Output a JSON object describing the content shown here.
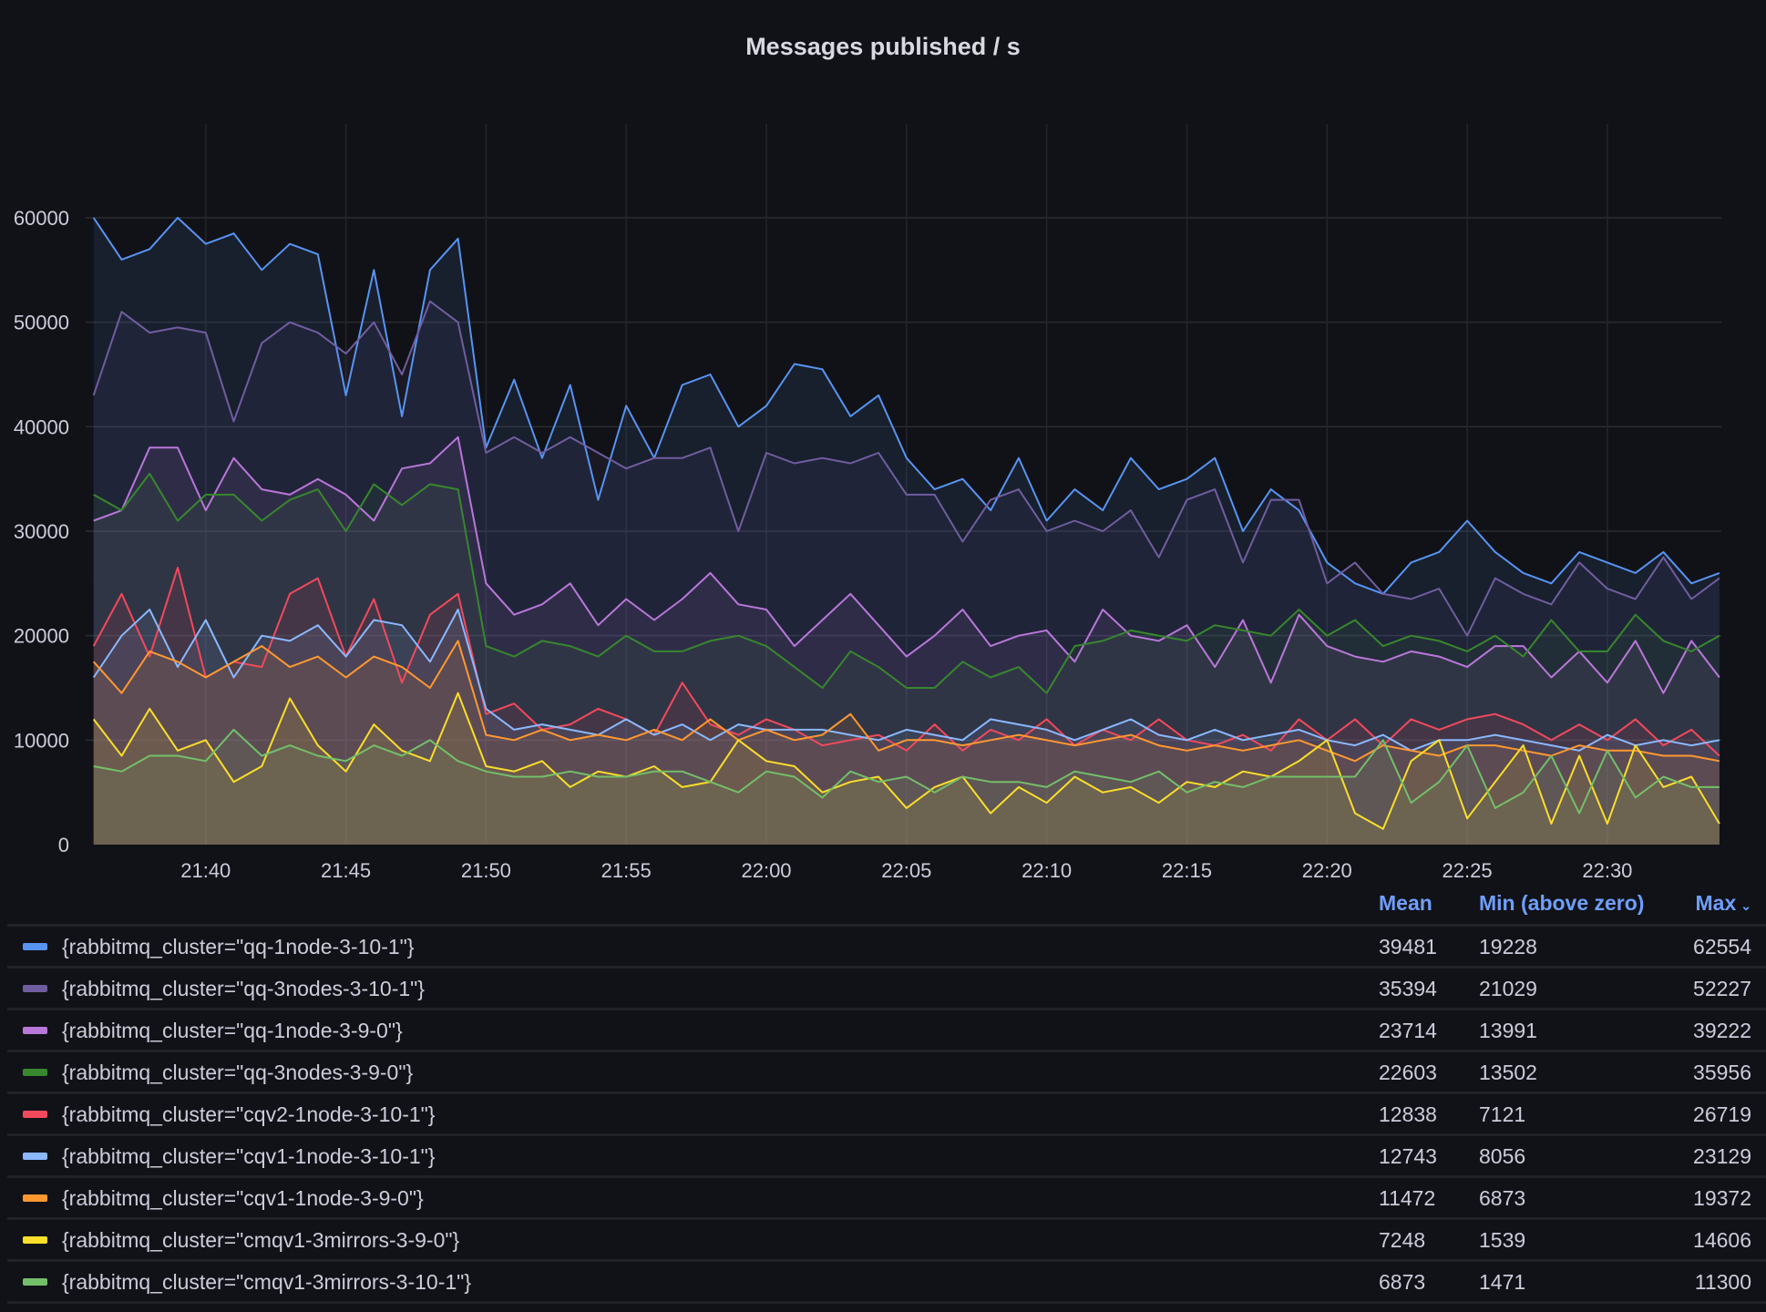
{
  "chart_data": {
    "type": "area",
    "title": "Messages published / s",
    "xlabel": "",
    "ylabel": "",
    "ylim": [
      0,
      67500
    ],
    "yticks": [
      0,
      10000,
      20000,
      30000,
      40000,
      50000,
      60000
    ],
    "xlim": [
      "21:35:43",
      "22:34:04"
    ],
    "xticks": [
      "21:40",
      "21:45",
      "21:50",
      "21:55",
      "22:00",
      "22:05",
      "22:10",
      "22:15",
      "22:20",
      "22:25",
      "22:30"
    ],
    "grid": true,
    "legend_placement": "bottom",
    "x": [
      "21:36",
      "21:37",
      "21:38",
      "21:39",
      "21:40",
      "21:41",
      "21:42",
      "21:43",
      "21:44",
      "21:45",
      "21:46",
      "21:47",
      "21:48",
      "21:49",
      "21:50",
      "21:51",
      "21:52",
      "21:53",
      "21:54",
      "21:55",
      "21:56",
      "21:57",
      "21:58",
      "21:59",
      "22:00",
      "22:01",
      "22:02",
      "22:03",
      "22:04",
      "22:05",
      "22:06",
      "22:07",
      "22:08",
      "22:09",
      "22:10",
      "22:11",
      "22:12",
      "22:13",
      "22:14",
      "22:15",
      "22:16",
      "22:17",
      "22:18",
      "22:19",
      "22:20",
      "22:21",
      "22:22",
      "22:23",
      "22:24",
      "22:25",
      "22:26",
      "22:27",
      "22:28",
      "22:29",
      "22:30",
      "22:31",
      "22:32",
      "22:33",
      "22:34"
    ],
    "legend_columns": [
      "Mean",
      "Min (above zero)",
      "Max"
    ],
    "sort_indicator": "chevron-down-icon",
    "series": [
      {
        "name": "{rabbitmq_cluster=\"qq-1node-3-10-1\"}",
        "color": "#5794f2",
        "mean": "39481",
        "min": "19228",
        "max": "62554",
        "values": [
          60000,
          56000,
          57000,
          60000,
          57500,
          58500,
          55000,
          57500,
          56500,
          43000,
          55000,
          41000,
          55000,
          58000,
          38000,
          44500,
          37000,
          44000,
          33000,
          42000,
          37000,
          44000,
          45000,
          40000,
          42000,
          46000,
          45500,
          41000,
          43000,
          37000,
          34000,
          35000,
          32000,
          37000,
          31000,
          34000,
          32000,
          37000,
          34000,
          35000,
          37000,
          30000,
          34000,
          32000,
          27000,
          25000,
          24000,
          27000,
          28000,
          31000,
          28000,
          26000,
          25000,
          28000,
          27000,
          26000,
          28000,
          25000,
          26000
        ]
      },
      {
        "name": "{rabbitmq_cluster=\"qq-3nodes-3-10-1\"}",
        "color": "#705da0",
        "mean": "35394",
        "min": "21029",
        "max": "52227",
        "values": [
          43000,
          51000,
          49000,
          49500,
          49000,
          40500,
          48000,
          50000,
          49000,
          47000,
          50000,
          45000,
          52000,
          50000,
          37500,
          39000,
          37500,
          39000,
          37500,
          36000,
          37000,
          37000,
          38000,
          30000,
          37500,
          36500,
          37000,
          36500,
          37500,
          33500,
          33500,
          29000,
          33000,
          34000,
          30000,
          31000,
          30000,
          32000,
          27500,
          33000,
          34000,
          27000,
          33000,
          33000,
          25000,
          27000,
          24000,
          23500,
          24500,
          20000,
          25500,
          24000,
          23000,
          27000,
          24500,
          23500,
          27500,
          23500,
          25500
        ]
      },
      {
        "name": "{rabbitmq_cluster=\"qq-1node-3-9-0\"}",
        "color": "#b877d9",
        "mean": "23714",
        "min": "13991",
        "max": "39222",
        "values": [
          31000,
          32000,
          38000,
          38000,
          32000,
          37000,
          34000,
          33500,
          35000,
          33500,
          31000,
          36000,
          36500,
          39000,
          25000,
          22000,
          23000,
          25000,
          21000,
          23500,
          21500,
          23500,
          26000,
          23000,
          22500,
          19000,
          21500,
          24000,
          21000,
          18000,
          20000,
          22500,
          19000,
          20000,
          20500,
          17500,
          22500,
          20000,
          19500,
          21000,
          17000,
          21500,
          15500,
          22000,
          19000,
          18000,
          17500,
          18500,
          18000,
          17000,
          19000,
          19000,
          16000,
          18500,
          15500,
          19500,
          14500,
          19500,
          16000
        ]
      },
      {
        "name": "{rabbitmq_cluster=\"qq-3nodes-3-9-0\"}",
        "color": "#37872d",
        "mean": "22603",
        "min": "13502",
        "max": "35956",
        "values": [
          33500,
          32000,
          35500,
          31000,
          33500,
          33500,
          31000,
          33000,
          34000,
          30000,
          34500,
          32500,
          34500,
          34000,
          19000,
          18000,
          19500,
          19000,
          18000,
          20000,
          18500,
          18500,
          19500,
          20000,
          19000,
          17000,
          15000,
          18500,
          17000,
          15000,
          15000,
          17500,
          16000,
          17000,
          14500,
          19000,
          19500,
          20500,
          20000,
          19500,
          21000,
          20500,
          20000,
          22500,
          20000,
          21500,
          19000,
          20000,
          19500,
          18500,
          20000,
          18000,
          21500,
          18500,
          18500,
          22000,
          19500,
          18500,
          20000
        ]
      },
      {
        "name": "{rabbitmq_cluster=\"cqv2-1node-3-10-1\"}",
        "color": "#f2495c",
        "mean": "12838",
        "min": "7121",
        "max": "26719",
        "values": [
          19000,
          24000,
          18000,
          26500,
          16000,
          17500,
          17000,
          24000,
          25500,
          18000,
          23500,
          15500,
          22000,
          24000,
          12500,
          13500,
          11000,
          11500,
          13000,
          12000,
          10500,
          15500,
          11500,
          10500,
          12000,
          11000,
          9500,
          10000,
          10500,
          9000,
          11500,
          9000,
          11000,
          10000,
          12000,
          9500,
          11000,
          10000,
          12000,
          10000,
          9500,
          10500,
          9000,
          12000,
          10000,
          12000,
          9500,
          12000,
          11000,
          12000,
          12500,
          11500,
          10000,
          11500,
          10000,
          12000,
          9500,
          11000,
          8500
        ]
      },
      {
        "name": "{rabbitmq_cluster=\"cqv1-1node-3-10-1\"}",
        "color": "#8ab8ff",
        "mean": "12743",
        "min": "8056",
        "max": "23129",
        "values": [
          16000,
          20000,
          22500,
          17000,
          21500,
          16000,
          20000,
          19500,
          21000,
          18000,
          21500,
          21000,
          17500,
          22500,
          13000,
          11000,
          11500,
          11000,
          10500,
          12000,
          10500,
          11500,
          10000,
          11500,
          11000,
          11000,
          11000,
          10500,
          10000,
          11000,
          10500,
          10000,
          12000,
          11500,
          11000,
          10000,
          11000,
          12000,
          10500,
          10000,
          11000,
          10000,
          10500,
          11000,
          10000,
          9500,
          10500,
          9000,
          10000,
          10000,
          10500,
          10000,
          9500,
          9000,
          10500,
          9500,
          10000,
          9500,
          10000
        ]
      },
      {
        "name": "{rabbitmq_cluster=\"cqv1-1node-3-9-0\"}",
        "color": "#ff9830",
        "mean": "11472",
        "min": "6873",
        "max": "19372",
        "values": [
          17500,
          14500,
          18500,
          17500,
          16000,
          17500,
          19000,
          17000,
          18000,
          16000,
          18000,
          17000,
          15000,
          19500,
          10500,
          10000,
          11000,
          10000,
          10500,
          10000,
          11000,
          10000,
          12000,
          10000,
          11000,
          10000,
          10500,
          12500,
          9000,
          10000,
          10000,
          9500,
          10000,
          10500,
          10000,
          9500,
          10000,
          10500,
          9500,
          9000,
          9500,
          9000,
          9500,
          10000,
          9000,
          8000,
          9500,
          9000,
          8500,
          9500,
          9500,
          9000,
          8500,
          9500,
          9000,
          9000,
          8500,
          8500,
          8000
        ]
      },
      {
        "name": "{rabbitmq_cluster=\"cmqv1-3mirrors-3-9-0\"}",
        "color": "#fade2a",
        "mean": "7248",
        "min": "1539",
        "max": "14606",
        "values": [
          12000,
          8500,
          13000,
          9000,
          10000,
          6000,
          7500,
          14000,
          9500,
          7000,
          11500,
          9000,
          8000,
          14500,
          7500,
          7000,
          8000,
          5500,
          7000,
          6500,
          7500,
          5500,
          6000,
          10000,
          8000,
          7500,
          5000,
          6000,
          6500,
          3500,
          5500,
          6500,
          3000,
          5500,
          4000,
          6500,
          5000,
          5500,
          4000,
          6000,
          5500,
          7000,
          6500,
          8000,
          10000,
          3000,
          1500,
          8000,
          10000,
          2500,
          6000,
          9500,
          2000,
          8500,
          2000,
          9500,
          5500,
          6500,
          2000
        ]
      },
      {
        "name": "{rabbitmq_cluster=\"cmqv1-3mirrors-3-10-1\"}",
        "color": "#73bf69",
        "mean": "6873",
        "min": "1471",
        "max": "11300",
        "values": [
          7500,
          7000,
          8500,
          8500,
          8000,
          11000,
          8500,
          9500,
          8500,
          8000,
          9500,
          8500,
          10000,
          8000,
          7000,
          6500,
          6500,
          7000,
          6500,
          6500,
          7000,
          7000,
          6000,
          5000,
          7000,
          6500,
          4500,
          7000,
          6000,
          6500,
          5000,
          6500,
          6000,
          6000,
          5500,
          7000,
          6500,
          6000,
          7000,
          5000,
          6000,
          5500,
          6500,
          6500,
          6500,
          6500,
          10000,
          4000,
          6000,
          9500,
          3500,
          5000,
          8500,
          3000,
          9000,
          4500,
          6500,
          5500,
          5500
        ]
      }
    ]
  }
}
